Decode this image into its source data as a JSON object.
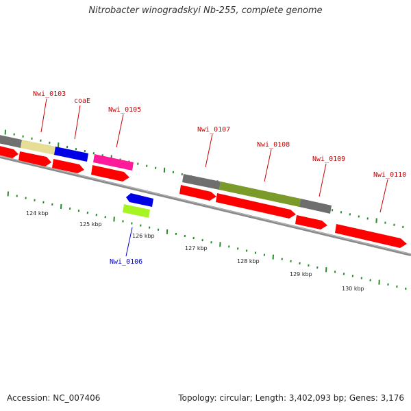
{
  "title": "Nitrobacter winogradskyi Nb-255, complete genome",
  "footer": {
    "accession": "Accession: NC_007406",
    "topology": "Topology: circular; Length: 3,402,093 bp; Genes: 3,176"
  },
  "gene_labels": [
    {
      "id": "g0103",
      "text": "Nwi_0103",
      "strand": "forward"
    },
    {
      "id": "gcoaE",
      "text": "coaE",
      "strand": "forward"
    },
    {
      "id": "g0105",
      "text": "Nwi_0105",
      "strand": "forward"
    },
    {
      "id": "g0106",
      "text": "Nwi_0106",
      "strand": "reverse"
    },
    {
      "id": "g0107",
      "text": "Nwi_0107",
      "strand": "forward"
    },
    {
      "id": "g0108",
      "text": "Nwi_0108",
      "strand": "forward"
    },
    {
      "id": "g0109",
      "text": "Nwi_0109",
      "strand": "forward"
    },
    {
      "id": "g0110",
      "text": "Nwi_0110",
      "strand": "forward"
    }
  ],
  "scale_labels": [
    "124 kbp",
    "125 kbp",
    "126 kbp",
    "127 kbp",
    "128 kbp",
    "129 kbp",
    "130 kbp"
  ],
  "colors": {
    "cds": "#ff0000",
    "gray_feature": "#6e6e6e",
    "khaki_feature": "#e8df9a",
    "blue_feature": "#0000ee",
    "magenta_feature": "#ff1a9a",
    "green_feature": "#7a9a2a",
    "lime_feature": "#aaff22",
    "tick_green": "#228b22",
    "backbone": "#888888"
  }
}
